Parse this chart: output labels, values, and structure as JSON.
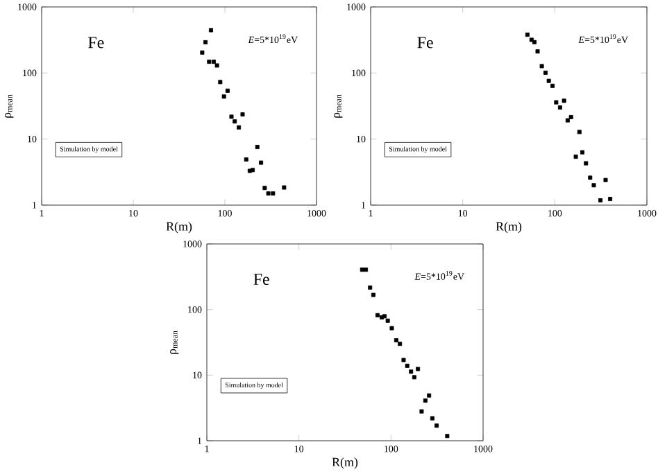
{
  "chart_data": [
    {
      "type": "scatter",
      "xlabel": "R(m)",
      "ylabel": "ρ$_{mean}$",
      "log": "xy",
      "marker": "square",
      "xlim": [
        1,
        1000
      ],
      "ylim": [
        1,
        1000
      ],
      "xticks": [
        1,
        10,
        100,
        1000
      ],
      "yticks": [
        1,
        10,
        100,
        1000
      ],
      "annotations": [
        "Fe",
        "*E*=5*10$^{19}$eV",
        "Simulation by model"
      ],
      "series": [
        {
          "color": "#000000",
          "x": [
            70.5,
            56.6,
            61.4,
            67.3,
            75.6,
            82,
            89,
            97.7,
            107,
            118,
            128,
            142,
            156,
            171,
            187,
            201,
            226,
            248,
            272,
            298,
            335,
            443
          ],
          "values": [
            445,
            204,
            292,
            148,
            148,
            130,
            73,
            44,
            54,
            21.8,
            18.5,
            15,
            23.6,
            4.9,
            3.3,
            3.4,
            7.6,
            4.4,
            1.82,
            1.5,
            1.5,
            1.85
          ]
        }
      ]
    },
    {
      "type": "scatter",
      "xlabel": "R(m)",
      "ylabel": "ρ$_{mean}$",
      "log": "xy",
      "marker": "square",
      "xlim": [
        1,
        1000
      ],
      "ylim": [
        1,
        1000
      ],
      "xticks": [
        1,
        10,
        100,
        1000
      ],
      "yticks": [
        1,
        10,
        100,
        1000
      ],
      "annotations": [
        "Fe",
        "*E*=5*10$^{19}$eV",
        "Simulation by model"
      ],
      "series": [
        {
          "color": "#000000",
          "x": [
            50.4,
            55.9,
            60,
            65,
            72.2,
            79.3,
            86,
            94.4,
            103.5,
            114,
            126,
            138,
            150,
            169,
            185,
            199,
            218,
            242,
            265,
            313,
            356,
            399
          ],
          "values": [
            380,
            318,
            293,
            212,
            127,
            101,
            76,
            64,
            36,
            30,
            38,
            19.2,
            21.5,
            5.4,
            12.8,
            6.3,
            4.3,
            2.6,
            2.0,
            1.18,
            2.4,
            1.24
          ]
        }
      ]
    },
    {
      "type": "scatter",
      "xlabel": "R(m)",
      "ylabel": "ρ$_{mean}$",
      "log": "xy",
      "marker": "square",
      "xlim": [
        1,
        1000
      ],
      "ylim": [
        1,
        1000
      ],
      "xticks": [
        1,
        10,
        100,
        1000
      ],
      "yticks": [
        1,
        10,
        100,
        1000
      ],
      "annotations": [
        "Fe",
        "*E*=5*10$^{19}$eV",
        "Simulation by model"
      ],
      "series": [
        {
          "color": "#000000",
          "x": [
            48.6,
            53.3,
            59.3,
            64.3,
            71.4,
            79.3,
            85,
            92.2,
            102,
            114,
            125,
            137,
            150,
            165,
            179,
            196,
            215,
            236,
            259,
            281,
            313,
            408
          ],
          "values": [
            405,
            405,
            216,
            167,
            82,
            76,
            79,
            67.6,
            52,
            34,
            30,
            17,
            13.9,
            11.3,
            9.3,
            12.4,
            2.8,
            4.1,
            4.9,
            2.2,
            1.7,
            1.18
          ]
        }
      ]
    }
  ]
}
